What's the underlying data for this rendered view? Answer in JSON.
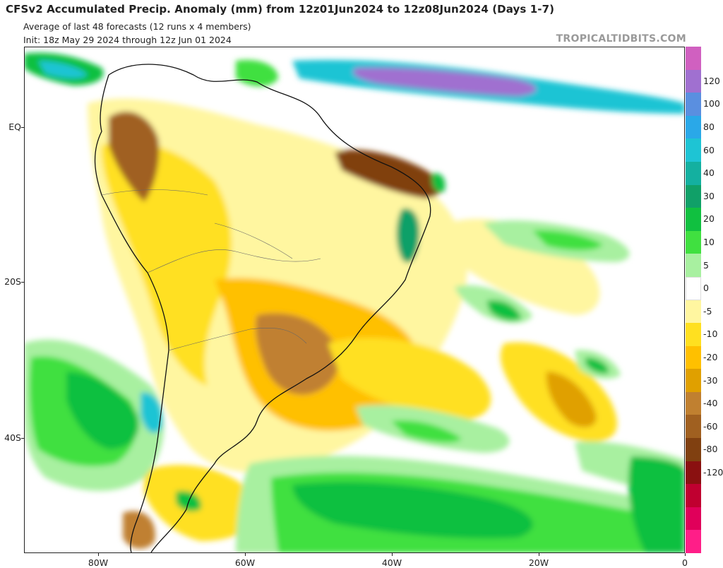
{
  "header": {
    "title": "CFSv2 Accumulated Precip. Anomaly (mm) from 12z01Jun2024 to 12z08Jun2024 (Days 1-7)",
    "subtitle1": "Average of last 48 forecasts (12 runs x 4 members)",
    "subtitle2": "Init: 18z May 29 2024 through 12z Jun 01 2024",
    "brand": "TROPICALTIDBITS.COM"
  },
  "map": {
    "lat_labels": [
      "EQ",
      "20S",
      "40S"
    ],
    "lon_labels": [
      "80W",
      "60W",
      "40W",
      "20W",
      "0"
    ]
  },
  "colorbar": {
    "labels": [
      "120",
      "100",
      "80",
      "60",
      "40",
      "30",
      "20",
      "10",
      "5",
      "0",
      "-5",
      "-10",
      "-20",
      "-30",
      "-40",
      "-60",
      "-80",
      "-120"
    ],
    "colors": [
      "#d060c0",
      "#a070d0",
      "#5a8fe0",
      "#2aa8e8",
      "#1ec4d4",
      "#14b0a0",
      "#10a068",
      "#10c040",
      "#40e040",
      "#a8f0a0",
      "#ffffff",
      "#fff6a0",
      "#ffe020",
      "#ffc000",
      "#e0a000",
      "#c08030",
      "#a06020",
      "#804010",
      "#8a1010",
      "#c00030",
      "#e0005a",
      "#ff1e88"
    ]
  }
}
